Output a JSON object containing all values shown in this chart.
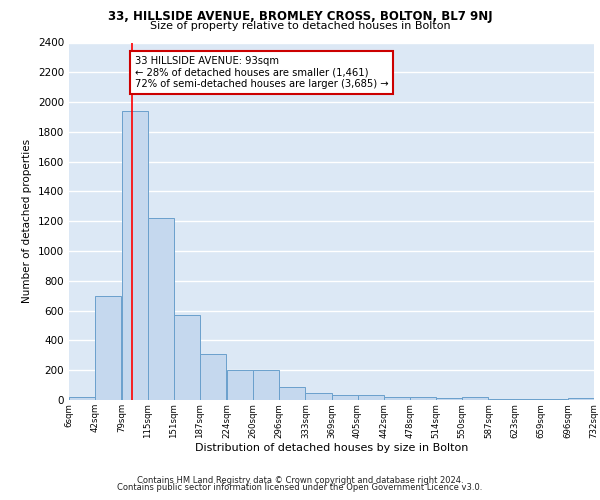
{
  "title1": "33, HILLSIDE AVENUE, BROMLEY CROSS, BOLTON, BL7 9NJ",
  "title2": "Size of property relative to detached houses in Bolton",
  "xlabel": "Distribution of detached houses by size in Bolton",
  "ylabel": "Number of detached properties",
  "bins": [
    6,
    42,
    79,
    115,
    151,
    187,
    224,
    260,
    296,
    333,
    369,
    405,
    442,
    478,
    514,
    550,
    587,
    623,
    659,
    696,
    732
  ],
  "counts": [
    20,
    700,
    1940,
    1220,
    570,
    310,
    200,
    200,
    90,
    45,
    35,
    35,
    20,
    20,
    15,
    20,
    10,
    10,
    5,
    15
  ],
  "bar_color": "#c5d8ee",
  "bar_edge_color": "#6aa0cc",
  "property_size": 93,
  "red_line_x": 93,
  "annotation_text": "33 HILLSIDE AVENUE: 93sqm\n← 28% of detached houses are smaller (1,461)\n72% of semi-detached houses are larger (3,685) →",
  "annotation_box_color": "white",
  "annotation_box_edge_color": "#cc0000",
  "footer1": "Contains HM Land Registry data © Crown copyright and database right 2024.",
  "footer2": "Contains public sector information licensed under the Open Government Licence v3.0.",
  "ylim": [
    0,
    2400
  ],
  "yticks": [
    0,
    200,
    400,
    600,
    800,
    1000,
    1200,
    1400,
    1600,
    1800,
    2000,
    2200,
    2400
  ],
  "tick_labels": [
    "6sqm",
    "42sqm",
    "79sqm",
    "115sqm",
    "151sqm",
    "187sqm",
    "224sqm",
    "260sqm",
    "296sqm",
    "333sqm",
    "369sqm",
    "405sqm",
    "442sqm",
    "478sqm",
    "514sqm",
    "550sqm",
    "587sqm",
    "623sqm",
    "659sqm",
    "696sqm",
    "732sqm"
  ],
  "background_color": "#dce8f5",
  "grid_color": "white",
  "fig_bg": "white"
}
